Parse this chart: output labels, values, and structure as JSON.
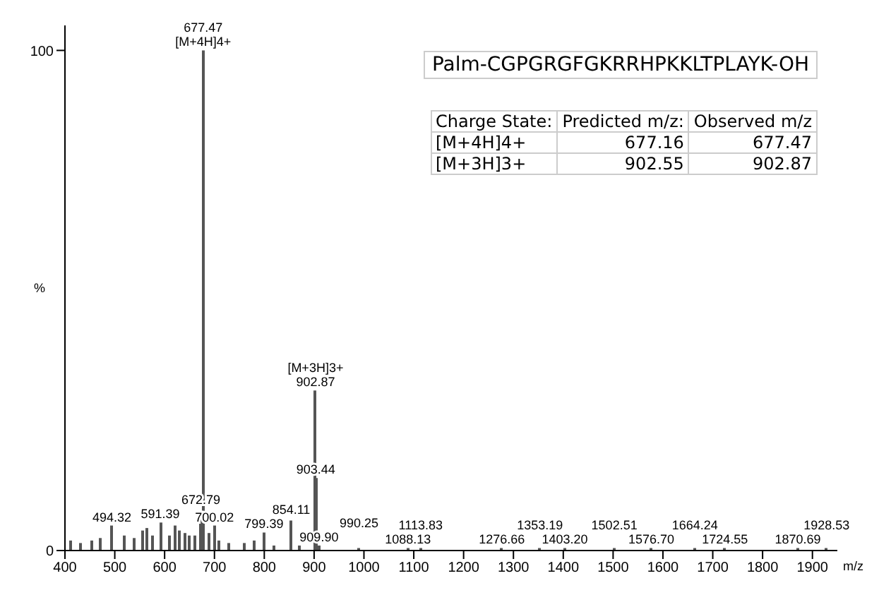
{
  "chart_data": {
    "type": "bar",
    "title": "Palm-CGPGRGFGKRRHPKKLTPLAYK-OH",
    "xlabel": "m/z",
    "ylabel": "%",
    "color": "#555555",
    "x": [
      410,
      430,
      455,
      470,
      494.32,
      520,
      540,
      555,
      565,
      575,
      591.39,
      610,
      620,
      630,
      640,
      650,
      660,
      672.79,
      677.47,
      690,
      700.02,
      710,
      730,
      760,
      780,
      799.39,
      820,
      854.11,
      870,
      902.87,
      903.44,
      909.9,
      990.25,
      1088.13,
      1113.83,
      1276.66,
      1353.19,
      1403.2,
      1502.51,
      1576.7,
      1664.24,
      1724.55,
      1870.69,
      1928.53
    ],
    "values": [
      2,
      1.5,
      2,
      2.5,
      5,
      3,
      2.5,
      4,
      4.5,
      3,
      5.6,
      3,
      5,
      4,
      3.5,
      3,
      3,
      7,
      100,
      3.5,
      5,
      2,
      1.5,
      1.5,
      2,
      3.6,
      1,
      6,
      1,
      32,
      14.5,
      1,
      0.5,
      0.5,
      0.5,
      0.5,
      0.5,
      0.5,
      0.5,
      0.5,
      0.5,
      0.5,
      0.5,
      0.5
    ],
    "xlim": [
      400,
      1950
    ],
    "xticks": [
      400,
      500,
      600,
      700,
      800,
      900,
      1000,
      1100,
      1200,
      1300,
      1400,
      1500,
      1600,
      1700,
      1800,
      1900
    ],
    "ylim": [
      0,
      105
    ],
    "yticks": [
      0,
      100
    ],
    "annotations": [
      {
        "text": "[M+4H]4+",
        "x": 677.47,
        "y": 100
      },
      {
        "text": "677.47",
        "x": 677.47,
        "y": 100
      },
      {
        "text": "902.87",
        "x": 902.87,
        "y": 32
      },
      {
        "text": "[M+3H]3+",
        "x": 902.87,
        "y": 32
      },
      {
        "text": "903.44",
        "x": 903.44,
        "y": 14.5
      },
      {
        "text": "494.32",
        "x": 494.32,
        "y": 5
      },
      {
        "text": "591.39",
        "x": 591.39,
        "y": 5.6
      },
      {
        "text": "672.79",
        "x": 672.79,
        "y": 7
      },
      {
        "text": "700.02",
        "x": 700.02,
        "y": 5
      },
      {
        "text": "799.39",
        "x": 799.39,
        "y": 3.6
      },
      {
        "text": "854.11",
        "x": 854.11,
        "y": 6
      },
      {
        "text": "909.90",
        "x": 909.9,
        "y": 1
      },
      {
        "text": "990.25",
        "x": 990.25,
        "y": 0.5
      },
      {
        "text": "1088.13",
        "x": 1088.13,
        "y": 0.5
      },
      {
        "text": "1113.83",
        "x": 1113.83,
        "y": 0.5
      },
      {
        "text": "1276.66",
        "x": 1276.66,
        "y": 0.5
      },
      {
        "text": "1353.19",
        "x": 1353.19,
        "y": 0.5
      },
      {
        "text": "1403.20",
        "x": 1403.2,
        "y": 0.5
      },
      {
        "text": "1502.51",
        "x": 1502.51,
        "y": 0.5
      },
      {
        "text": "1576.70",
        "x": 1576.7,
        "y": 0.5
      },
      {
        "text": "1664.24",
        "x": 1664.24,
        "y": 0.5
      },
      {
        "text": "1724.55",
        "x": 1724.55,
        "y": 0.5
      },
      {
        "text": "1870.69",
        "x": 1870.69,
        "y": 0.5
      },
      {
        "text": "1928.53",
        "x": 1928.53,
        "y": 0.5
      },
      "Charge State:",
      "Predicted m/z:",
      "Observed m/z",
      "[M+4H]4+",
      "677.16",
      "677.47",
      "[M+3H]3+",
      "902.55",
      "902.87"
    ]
  }
}
